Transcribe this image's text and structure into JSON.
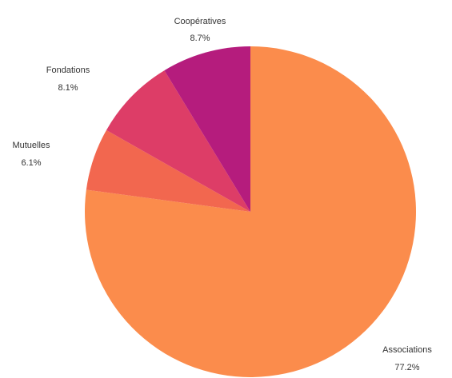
{
  "chart_data": {
    "type": "pie",
    "title": "",
    "start": "12 o'clock",
    "direction": "clockwise",
    "slices": [
      {
        "label": "Associations",
        "value": 77.2,
        "value_text": "77.2%",
        "color": "#FB8C4C"
      },
      {
        "label": "Mutuelles",
        "value": 6.1,
        "value_text": "6.1%",
        "color": "#F2674F"
      },
      {
        "label": "Fondations",
        "value": 8.1,
        "value_text": "8.1%",
        "color": "#DD3D67"
      },
      {
        "label": "Coopératives",
        "value": 8.7,
        "value_text": "8.7%",
        "color": "#B51C7D"
      }
    ]
  }
}
